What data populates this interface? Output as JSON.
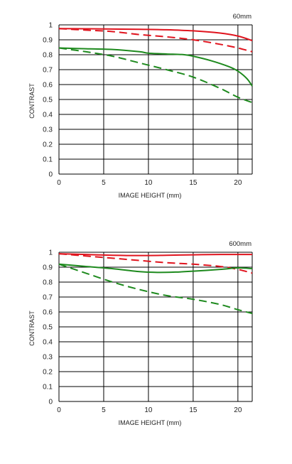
{
  "colors": {
    "red": "#e0141e",
    "green": "#1e8a1e",
    "grid": "#000000"
  },
  "chart_data": [
    {
      "type": "line",
      "corner_label": "60mm",
      "xlabel": "IMAGE HEIGHT (mm)",
      "ylabel": "CONTRAST",
      "xlim": [
        0,
        21.6
      ],
      "ylim": [
        0,
        1
      ],
      "xticks": [
        0,
        5,
        10,
        15,
        20
      ],
      "xtick_labels": [
        "0",
        "5",
        "10",
        "15",
        "20"
      ],
      "yticks": [
        0,
        0.1,
        0.2,
        0.3,
        0.4,
        0.5,
        0.6,
        0.7,
        0.8,
        0.9,
        1
      ],
      "ytick_labels": [
        "0",
        "0.1",
        "0.2",
        "0.3",
        "0.4",
        "0.5",
        "0.6",
        "0.7",
        "0.8",
        "0.9",
        "1"
      ],
      "grid": true,
      "series": [
        {
          "color": "red",
          "dash": false,
          "x": [
            0,
            3,
            6,
            9,
            12,
            15,
            18,
            20,
            21.6
          ],
          "y": [
            0.975,
            0.974,
            0.972,
            0.97,
            0.967,
            0.96,
            0.945,
            0.925,
            0.895
          ]
        },
        {
          "color": "red",
          "dash": true,
          "x": [
            0,
            3,
            6,
            9,
            12,
            15,
            18,
            20,
            21.6
          ],
          "y": [
            0.975,
            0.965,
            0.955,
            0.935,
            0.92,
            0.9,
            0.87,
            0.845,
            0.82
          ]
        },
        {
          "color": "green",
          "dash": false,
          "x": [
            0,
            3,
            6,
            9,
            10,
            12,
            14,
            15,
            17,
            19,
            20,
            21,
            21.6
          ],
          "y": [
            0.845,
            0.84,
            0.835,
            0.82,
            0.81,
            0.805,
            0.8,
            0.79,
            0.76,
            0.72,
            0.69,
            0.64,
            0.59
          ]
        },
        {
          "color": "green",
          "dash": true,
          "x": [
            0,
            3,
            6,
            9,
            12,
            15,
            18,
            20,
            21.6
          ],
          "y": [
            0.845,
            0.82,
            0.79,
            0.745,
            0.7,
            0.65,
            0.575,
            0.515,
            0.48
          ]
        }
      ]
    },
    {
      "type": "line",
      "corner_label": "600mm",
      "xlabel": "IMAGE HEIGHT (mm)",
      "ylabel": "CONTRAST",
      "xlim": [
        0,
        21.6
      ],
      "ylim": [
        0,
        1
      ],
      "xticks": [
        0,
        5,
        10,
        15,
        20
      ],
      "xtick_labels": [
        "0",
        "5",
        "10",
        "15",
        "20"
      ],
      "yticks": [
        0,
        0.1,
        0.2,
        0.3,
        0.4,
        0.5,
        0.6,
        0.7,
        0.8,
        0.9,
        1
      ],
      "ytick_labels": [
        "0",
        "0.1",
        "0.2",
        "0.3",
        "0.4",
        "0.5",
        "0.6",
        "0.7",
        "0.8",
        "0.9",
        "1"
      ],
      "grid": true,
      "series": [
        {
          "color": "red",
          "dash": false,
          "x": [
            0,
            3,
            6,
            9,
            12,
            15,
            18,
            21.6
          ],
          "y": [
            0.99,
            0.985,
            0.98,
            0.978,
            0.98,
            0.983,
            0.985,
            0.985
          ]
        },
        {
          "color": "red",
          "dash": true,
          "x": [
            0,
            3,
            6,
            9,
            12,
            15,
            18,
            20,
            21.6
          ],
          "y": [
            0.99,
            0.975,
            0.96,
            0.945,
            0.93,
            0.92,
            0.905,
            0.885,
            0.86
          ]
        },
        {
          "color": "green",
          "dash": false,
          "x": [
            0,
            3,
            6,
            9,
            11,
            13,
            15,
            18,
            20,
            21.6
          ],
          "y": [
            0.92,
            0.905,
            0.89,
            0.87,
            0.865,
            0.867,
            0.873,
            0.885,
            0.895,
            0.89
          ]
        },
        {
          "color": "green",
          "dash": true,
          "x": [
            0,
            3,
            6,
            9,
            12,
            15,
            18,
            20,
            21.6
          ],
          "y": [
            0.92,
            0.86,
            0.8,
            0.75,
            0.71,
            0.685,
            0.65,
            0.615,
            0.59
          ]
        }
      ]
    }
  ]
}
